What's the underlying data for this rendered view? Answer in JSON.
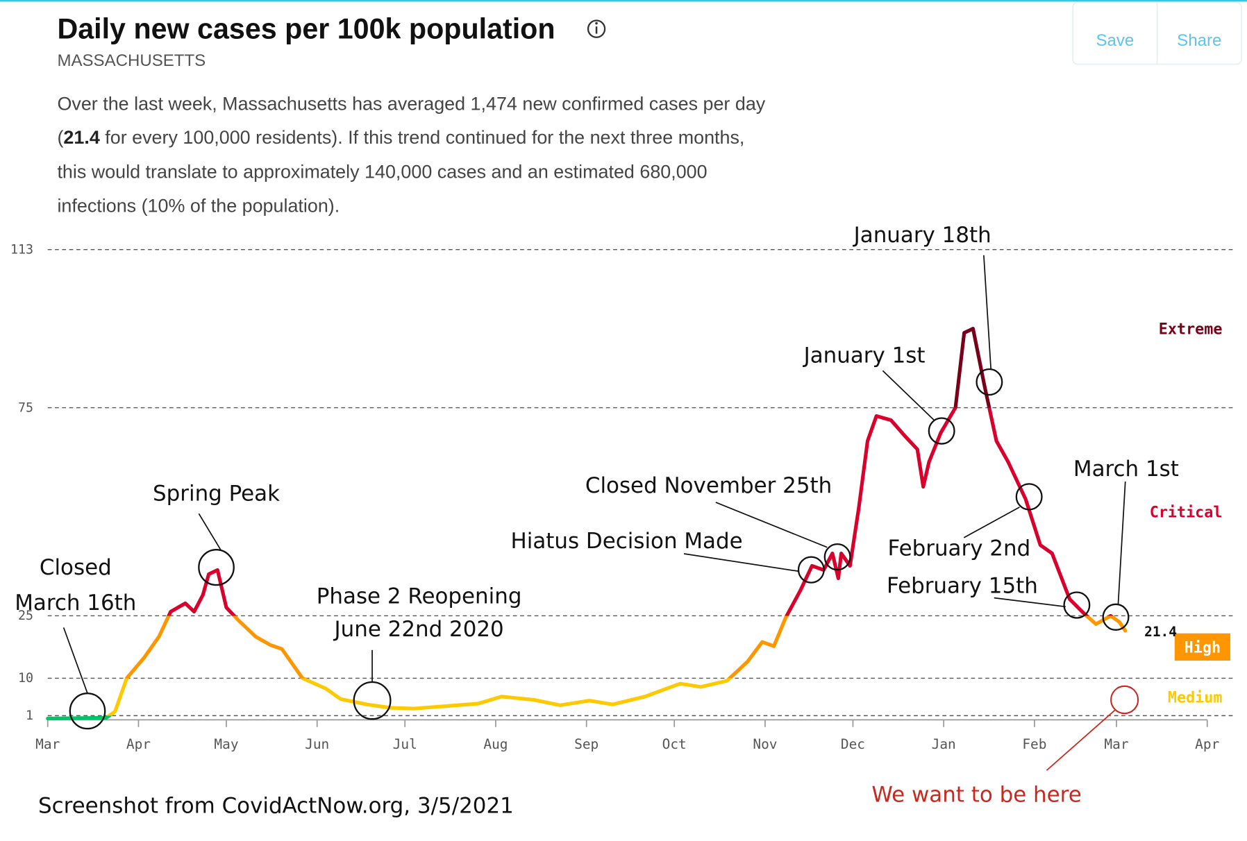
{
  "header": {
    "title": "Daily new cases per 100k population",
    "subtitle": "MASSACHUSETTS",
    "description": [
      "Over the last week, Massachusetts has averaged 1,474 new confirmed cases per day",
      "(",
      "21.4",
      " for every 100,000 residents). If this trend continued for the next three months,",
      "this would translate to approximately 140,000 cases and an estimated 680,000",
      "infections (10% of the population)."
    ],
    "buttons": [
      "Save",
      "Share"
    ]
  },
  "chart_data": {
    "type": "line",
    "x": [
      0,
      20,
      23,
      27,
      33,
      38,
      42,
      47,
      50,
      53,
      55,
      58,
      61,
      65,
      71,
      76,
      80,
      87,
      95,
      100,
      109,
      117,
      125,
      136,
      147,
      155,
      166,
      175,
      185,
      193,
      204,
      216,
      223,
      232,
      239,
      244,
      248,
      252,
      257,
      261,
      265,
      268,
      270,
      271,
      274,
      277,
      280,
      283,
      288,
      293,
      297,
      299,
      301,
      305,
      310,
      313,
      316,
      320,
      324,
      328,
      334,
      339,
      343,
      349,
      354,
      358,
      363,
      366,
      368
    ],
    "series": [
      {
        "values": [
          0.3,
          0.5,
          2,
          10,
          15,
          20,
          26,
          28,
          26,
          30,
          35,
          36,
          27,
          24,
          20,
          18,
          17,
          10,
          7.5,
          5,
          3.7,
          2.9,
          2.7,
          3.3,
          3.9,
          5.6,
          4.8,
          3.5,
          4.6,
          3.7,
          5.6,
          8.7,
          7.9,
          9.4,
          14,
          18.7,
          17.7,
          24.5,
          31,
          37,
          36,
          40,
          34,
          40,
          37,
          51,
          67,
          73,
          72,
          68,
          65,
          56,
          62,
          69,
          75,
          93,
          94,
          80,
          67,
          62,
          53,
          42,
          40,
          29,
          25.5,
          23,
          25,
          23.5,
          21.4
        ]
      }
    ],
    "xlim": [
      0,
      396
    ],
    "xticks": [
      {
        "value": 0,
        "label": "Mar"
      },
      {
        "value": 31,
        "label": "Apr"
      },
      {
        "value": 61,
        "label": "May"
      },
      {
        "value": 92,
        "label": "Jun"
      },
      {
        "value": 122,
        "label": "Jul"
      },
      {
        "value": 153,
        "label": "Aug"
      },
      {
        "value": 184,
        "label": "Sep"
      },
      {
        "value": 214,
        "label": "Oct"
      },
      {
        "value": 245,
        "label": "Nov"
      },
      {
        "value": 275,
        "label": "Dec"
      },
      {
        "value": 306,
        "label": "Jan"
      },
      {
        "value": 337,
        "label": "Feb"
      },
      {
        "value": 365,
        "label": "Mar"
      },
      {
        "value": 396,
        "label": "Apr"
      }
    ],
    "ylim": [
      0,
      113
    ],
    "yticks": [
      1,
      10,
      25,
      75,
      113
    ],
    "grid": true,
    "levels": [
      {
        "color": "#00c46a",
        "min": 0
      },
      {
        "name": "Medium",
        "color": "#ffc900",
        "min": 1
      },
      {
        "name": "High",
        "color": "#ff9600",
        "min": 10
      },
      {
        "name": "Critical",
        "color": "#d9002c",
        "min": 25
      },
      {
        "name": "Extreme",
        "color": "#790019",
        "min": 75
      }
    ]
  },
  "annotations": [
    "Closed",
    "March 16th",
    "Spring Peak",
    "Phase 2 Reopening",
    "June 22nd 2020",
    "Hiatus Decision Made",
    "Closed November 25th",
    "January 1st",
    "January 18th",
    "March 1st",
    "February 2nd",
    "February 15th",
    "We want to be here"
  ],
  "footer": "Screenshot from CovidActNow.org, 3/5/2021"
}
